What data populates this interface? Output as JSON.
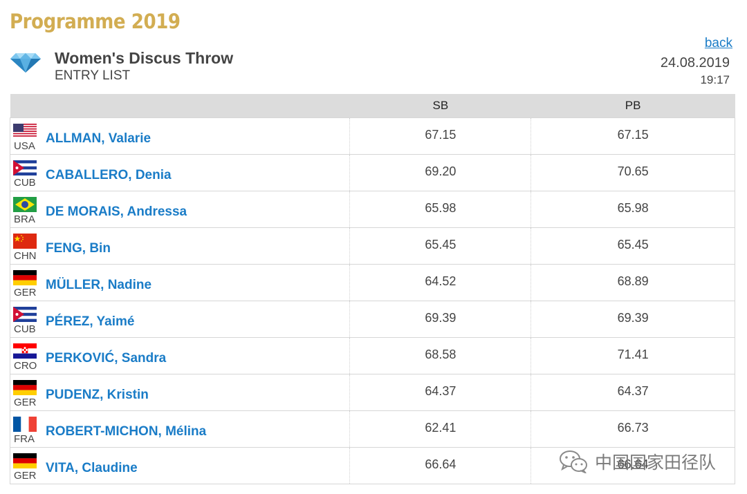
{
  "programme_title": "Programme 2019",
  "event": {
    "icon": "diamond-icon",
    "title": "Women's Discus Throw",
    "subtitle": "ENTRY LIST"
  },
  "nav": {
    "back_label": "back"
  },
  "meta": {
    "date": "24.08.2019",
    "time": "19:17"
  },
  "table": {
    "headers": {
      "athlete": "",
      "sb": "SB",
      "pb": "PB"
    },
    "rows": [
      {
        "country": "USA",
        "flag": "usa-flag-icon",
        "name": "ALLMAN, Valarie",
        "sb": "67.15",
        "pb": "67.15"
      },
      {
        "country": "CUB",
        "flag": "cuba-flag-icon",
        "name": "CABALLERO, Denia",
        "sb": "69.20",
        "pb": "70.65"
      },
      {
        "country": "BRA",
        "flag": "brazil-flag-icon",
        "name": "DE MORAIS, Andressa",
        "sb": "65.98",
        "pb": "65.98"
      },
      {
        "country": "CHN",
        "flag": "china-flag-icon",
        "name": "FENG, Bin",
        "sb": "65.45",
        "pb": "65.45"
      },
      {
        "country": "GER",
        "flag": "germany-flag-icon",
        "name": "MÜLLER, Nadine",
        "sb": "64.52",
        "pb": "68.89"
      },
      {
        "country": "CUB",
        "flag": "cuba-flag-icon",
        "name": "PÉREZ, Yaimé",
        "sb": "69.39",
        "pb": "69.39"
      },
      {
        "country": "CRO",
        "flag": "croatia-flag-icon",
        "name": "PERKOVIĆ, Sandra",
        "sb": "68.58",
        "pb": "71.41"
      },
      {
        "country": "GER",
        "flag": "germany-flag-icon",
        "name": "PUDENZ, Kristin",
        "sb": "64.37",
        "pb": "64.37"
      },
      {
        "country": "FRA",
        "flag": "france-flag-icon",
        "name": "ROBERT-MICHON, Mélina",
        "sb": "62.41",
        "pb": "66.73"
      },
      {
        "country": "GER",
        "flag": "germany-flag-icon",
        "name": "VITA, Claudine",
        "sb": "66.64",
        "pb": "66.64"
      }
    ]
  },
  "watermark": {
    "icon": "wechat-icon",
    "text": "中国国家田径队"
  },
  "colors": {
    "programme_title": "#d2ad52",
    "link": "#1a7cc7",
    "header_bg": "#dcdcdc"
  }
}
